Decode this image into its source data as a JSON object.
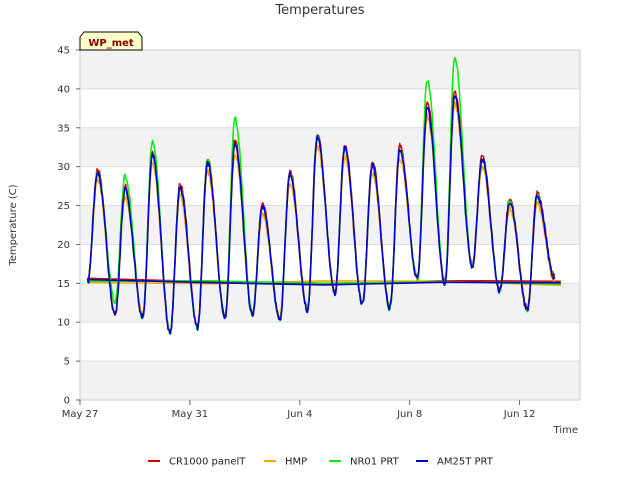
{
  "chart_data": {
    "type": "line",
    "title": "Temperatures",
    "xlabel": "Time",
    "ylabel": "Temperature (C)",
    "badge": "WP_met",
    "ylim": [
      0,
      45
    ],
    "yticks": [
      0,
      5,
      10,
      15,
      20,
      25,
      30,
      35,
      40,
      45
    ],
    "xlim": [
      0,
      18.2
    ],
    "xticks": [
      {
        "day": 0,
        "label": "May 27"
      },
      {
        "day": 4,
        "label": "May 31"
      },
      {
        "day": 8,
        "label": "Jun 4"
      },
      {
        "day": 12,
        "label": "Jun 8"
      },
      {
        "day": 16,
        "label": "Jun 12"
      }
    ],
    "grid": true,
    "legend_position": "bottom",
    "daily": {
      "start": [
        17.5,
        15.0
      ],
      "min_time": 0.28,
      "max_time": 0.64,
      "days": [
        {
          "min": 15.2,
          "max": 29.3
        },
        {
          "min": 11.0,
          "max": 27.0
        },
        {
          "min": 10.7,
          "max": 31.5
        },
        {
          "min": 8.6,
          "max": 27.3
        },
        {
          "min": 9.3,
          "max": 30.5
        },
        {
          "min": 10.6,
          "max": 32.8
        },
        {
          "min": 11.0,
          "max": 24.9
        },
        {
          "min": 10.4,
          "max": 29.0
        },
        {
          "min": 11.6,
          "max": 33.8
        },
        {
          "min": 13.7,
          "max": 32.3
        },
        {
          "min": 12.3,
          "max": 30.2
        },
        {
          "min": 11.8,
          "max": 32.2
        },
        {
          "min": 15.5,
          "max": 37.6
        },
        {
          "min": 15.0,
          "max": 39.3
        },
        {
          "min": 17.2,
          "max": 31.0
        },
        {
          "min": 14.0,
          "max": 25.5
        },
        {
          "min": 11.6,
          "max": 26.2
        },
        {
          "min": 15.6,
          "max": 15.6
        }
      ],
      "end": 17.3
    },
    "series": [
      {
        "name": "CR1000 panelT",
        "color": "#dd0000",
        "amp_factor": 1.02,
        "offset": 0.3
      },
      {
        "name": "HMP",
        "color": "#ffa500",
        "amp_factor": 0.93,
        "offset": -0.4
      },
      {
        "name": "NR01 PRT",
        "color": "#00ee00",
        "amp_factor": 1.0,
        "offset": 0.0,
        "peak_overrides": {
          "1": 28.8,
          "2": 33.2,
          "4": 30.8,
          "5": 36.2,
          "12": 41.2,
          "13": 44.0
        },
        "min_overrides": {
          "1": 12.5
        }
      },
      {
        "name": "AM25T PRT",
        "color": "#0000cc",
        "amp_factor": 1.0,
        "offset": 0.0
      }
    ]
  }
}
